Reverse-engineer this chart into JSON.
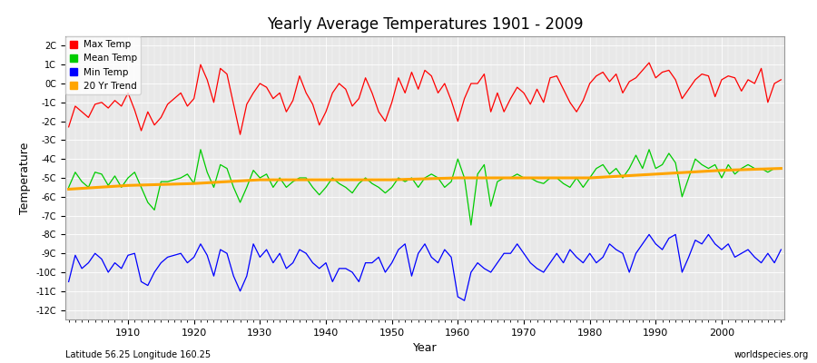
{
  "title": "Yearly Average Temperatures 1901 - 2009",
  "xlabel": "Year",
  "ylabel": "Temperature",
  "lat_lon_label": "Latitude 56.25 Longitude 160.25",
  "watermark": "worldspecies.org",
  "year_start": 1901,
  "year_end": 2009,
  "ylim": [
    -12.5,
    2.5
  ],
  "yticks": [
    -12,
    -11,
    -10,
    -9,
    -8,
    -7,
    -6,
    -5,
    -4,
    -3,
    -2,
    -1,
    0,
    1,
    2
  ],
  "ytick_labels": [
    "-12C",
    "-11C",
    "-10C",
    "-9C",
    "-8C",
    "-7C",
    "-6C",
    "-5C",
    "-4C",
    "-3C",
    "-2C",
    "-1C",
    "0C",
    "1C",
    "2C"
  ],
  "legend_entries": [
    "Max Temp",
    "Mean Temp",
    "Min Temp",
    "20 Yr Trend"
  ],
  "legend_colors": [
    "#ff0000",
    "#00cc00",
    "#0000ff",
    "#ffa500"
  ],
  "line_colors": [
    "#ff0000",
    "#00cc00",
    "#0000ff",
    "#ffa500"
  ],
  "bg_color": "#ffffff",
  "plot_bg": "#e8e8e8",
  "grid_color": "#ffffff",
  "max_temp": [
    -2.3,
    -1.2,
    -1.5,
    -1.8,
    -1.1,
    -1.0,
    -1.3,
    -0.9,
    -1.2,
    -0.5,
    -1.4,
    -2.5,
    -1.5,
    -2.2,
    -1.8,
    -1.1,
    -0.8,
    -0.5,
    -1.2,
    -0.8,
    1.0,
    0.2,
    -1.0,
    0.8,
    0.5,
    -1.1,
    -2.7,
    -1.1,
    -0.5,
    0.0,
    -0.2,
    -0.8,
    -0.5,
    -1.5,
    -0.9,
    0.4,
    -0.5,
    -1.1,
    -2.2,
    -1.5,
    -0.5,
    0.0,
    -0.3,
    -1.2,
    -0.8,
    0.3,
    -0.5,
    -1.5,
    -2.0,
    -1.0,
    0.3,
    -0.5,
    0.6,
    -0.3,
    0.7,
    0.4,
    -0.5,
    0.0,
    -0.9,
    -2.0,
    -0.8,
    0.0,
    0.0,
    0.5,
    -1.5,
    -0.5,
    -1.5,
    -0.8,
    -0.2,
    -0.5,
    -1.1,
    -0.3,
    -1.0,
    0.3,
    0.4,
    -0.3,
    -1.0,
    -1.5,
    -0.9,
    0.0,
    0.4,
    0.6,
    0.1,
    0.5,
    -0.5,
    0.1,
    0.3,
    0.7,
    1.1,
    0.3,
    0.6,
    0.7,
    0.2,
    -0.8,
    -0.3,
    0.2,
    0.5,
    0.4,
    -0.7,
    0.2,
    0.4,
    0.3,
    -0.4,
    0.2,
    0.0,
    0.8,
    -1.0,
    0.0,
    0.2
  ],
  "mean_temp": [
    -5.5,
    -4.7,
    -5.2,
    -5.5,
    -4.7,
    -4.8,
    -5.4,
    -4.9,
    -5.5,
    -5.0,
    -4.7,
    -5.5,
    -6.3,
    -6.7,
    -5.2,
    -5.2,
    -5.1,
    -5.0,
    -4.8,
    -5.3,
    -3.5,
    -4.7,
    -5.5,
    -4.3,
    -4.5,
    -5.5,
    -6.3,
    -5.5,
    -4.6,
    -5.0,
    -4.8,
    -5.5,
    -5.0,
    -5.5,
    -5.2,
    -5.0,
    -5.0,
    -5.5,
    -5.9,
    -5.5,
    -5.0,
    -5.3,
    -5.5,
    -5.8,
    -5.3,
    -5.0,
    -5.3,
    -5.5,
    -5.8,
    -5.5,
    -5.0,
    -5.2,
    -5.0,
    -5.5,
    -5.0,
    -4.8,
    -5.0,
    -5.5,
    -5.2,
    -4.0,
    -5.0,
    -7.5,
    -4.8,
    -4.3,
    -6.5,
    -5.2,
    -5.0,
    -5.0,
    -4.8,
    -5.0,
    -5.0,
    -5.2,
    -5.3,
    -5.0,
    -5.0,
    -5.3,
    -5.5,
    -5.0,
    -5.5,
    -5.0,
    -4.5,
    -4.3,
    -4.8,
    -4.5,
    -5.0,
    -4.5,
    -3.8,
    -4.5,
    -3.5,
    -4.5,
    -4.3,
    -3.7,
    -4.2,
    -6.0,
    -5.0,
    -4.0,
    -4.3,
    -4.5,
    -4.3,
    -5.0,
    -4.3,
    -4.8,
    -4.5,
    -4.3,
    -4.5,
    -4.5,
    -4.7,
    -4.5,
    -4.5
  ],
  "min_temp": [
    -10.5,
    -9.1,
    -9.8,
    -9.5,
    -9.0,
    -9.3,
    -10.0,
    -9.5,
    -9.8,
    -9.1,
    -9.0,
    -10.5,
    -10.7,
    -10.0,
    -9.5,
    -9.2,
    -9.1,
    -9.0,
    -9.5,
    -9.2,
    -8.5,
    -9.1,
    -10.2,
    -8.8,
    -9.0,
    -10.2,
    -11.0,
    -10.2,
    -8.5,
    -9.2,
    -8.8,
    -9.5,
    -9.0,
    -9.8,
    -9.5,
    -8.8,
    -9.0,
    -9.5,
    -9.8,
    -9.5,
    -10.5,
    -9.8,
    -9.8,
    -10.0,
    -10.5,
    -9.5,
    -9.5,
    -9.2,
    -10.0,
    -9.5,
    -8.8,
    -8.5,
    -10.2,
    -9.0,
    -8.5,
    -9.2,
    -9.5,
    -8.8,
    -9.2,
    -11.3,
    -11.5,
    -10.0,
    -9.5,
    -9.8,
    -10.0,
    -9.5,
    -9.0,
    -9.0,
    -8.5,
    -9.0,
    -9.5,
    -9.8,
    -10.0,
    -9.5,
    -9.0,
    -9.5,
    -8.8,
    -9.2,
    -9.5,
    -9.0,
    -9.5,
    -9.2,
    -8.5,
    -8.8,
    -9.0,
    -10.0,
    -9.0,
    -8.5,
    -8.0,
    -8.5,
    -8.8,
    -8.2,
    -8.0,
    -10.0,
    -9.2,
    -8.3,
    -8.5,
    -8.0,
    -8.5,
    -8.8,
    -8.5,
    -9.2,
    -9.0,
    -8.8,
    -9.2,
    -9.5,
    -9.0,
    -9.5,
    -8.8
  ],
  "trend_x": [
    1901,
    1910,
    1920,
    1930,
    1940,
    1950,
    1960,
    1970,
    1980,
    1990,
    2000,
    2009
  ],
  "trend_y": [
    -5.6,
    -5.4,
    -5.3,
    -5.1,
    -5.1,
    -5.1,
    -5.0,
    -5.0,
    -5.0,
    -4.8,
    -4.6,
    -4.5
  ]
}
